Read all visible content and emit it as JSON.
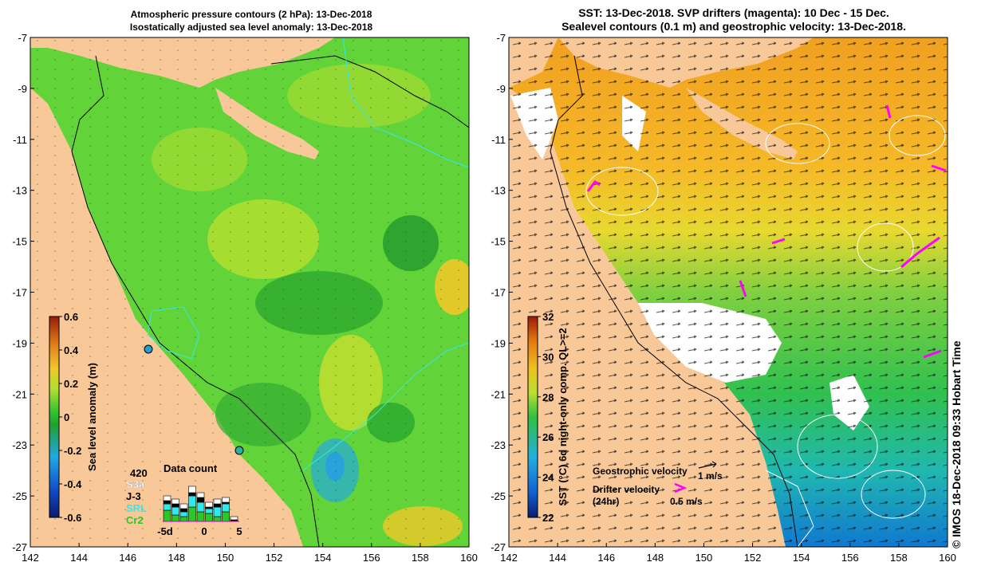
{
  "left_panel": {
    "title_line1": "Atmospheric pressure contours (2 hPa): 13-Dec-2018",
    "title_line2": "Isostatically adjusted sea level anomaly: 13-Dec-2018",
    "colorbar": {
      "label": "Sea level anomaly (m)",
      "ticks": [
        "0.6",
        "0.4",
        "0.2",
        "0",
        "-0.2",
        "-0.4",
        "-0.6"
      ],
      "colors": [
        "#0a1a6e",
        "#1050c8",
        "#20a8e8",
        "#22b422",
        "#b0e030",
        "#f0c828",
        "#e08018",
        "#9a1a0a"
      ]
    },
    "data_count": {
      "title": "Data count",
      "max_label": "420",
      "sources": [
        {
          "name": "S3a",
          "color": "#ffffff"
        },
        {
          "name": "J-3",
          "color": "#000000"
        },
        {
          "name": "SRL",
          "color": "#30e8f0"
        },
        {
          "name": "Cr2",
          "color": "#28c828"
        }
      ],
      "x_ticks": [
        "-5d",
        "0",
        "5"
      ]
    }
  },
  "right_panel": {
    "title_line1": "SST: 13-Dec-2018. SVP drifters (magenta): 10 Dec - 15 Dec.",
    "title_line2": "Sealevel contours (0.1 m) and geostrophic velocity: 13-Dec-2018.",
    "colorbar": {
      "label": "SST (°C) 6d night-only comp. QL>=2",
      "ticks": [
        "32",
        "30",
        "28",
        "26",
        "24",
        "22"
      ],
      "colors": [
        "#0a1a6e",
        "#1060d0",
        "#20b0e0",
        "#30c040",
        "#b8e030",
        "#f0c020",
        "#e07810",
        "#a01808"
      ]
    },
    "legend": {
      "geostrophic_label": "Geostrophic velocity",
      "geostrophic_scale": "1 m/s",
      "drifter_label_line1": "Drifter velocity",
      "drifter_label_line2": "(24hr)",
      "drifter_scale": "0.5 m/s"
    }
  },
  "axes": {
    "lat_ticks": [
      "-7",
      "-9",
      "-11",
      "-13",
      "-15",
      "-17",
      "-19",
      "-21",
      "-23",
      "-25",
      "-27"
    ],
    "lon_ticks": [
      "142",
      "144",
      "146",
      "148",
      "150",
      "152",
      "154",
      "156",
      "158",
      "160"
    ]
  },
  "stamp": "© IMOS 18-Dec-2018 09:33 Hobart Time",
  "colors": {
    "land": "#f8c898",
    "magenta": "#ff00ff",
    "sla_green": "#3cc83c"
  }
}
